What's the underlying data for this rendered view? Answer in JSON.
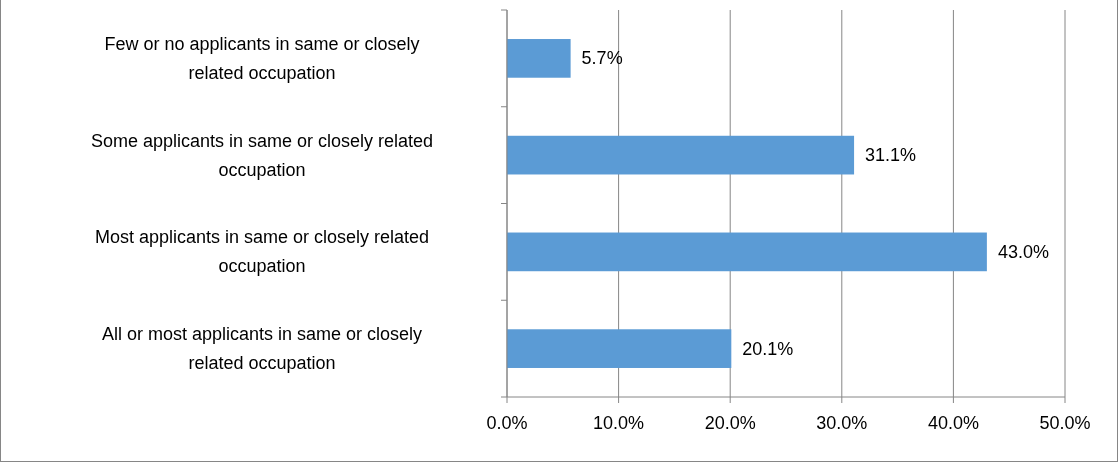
{
  "chart_data": {
    "type": "bar",
    "orientation": "horizontal",
    "categories": [
      "Few or no applicants in same or closely related occupation",
      "Some applicants in same or closely related occupation",
      "Most applicants in same or closely related occupation",
      "All or most applicants in same or closely related occupation"
    ],
    "values": [
      5.7,
      31.1,
      43.0,
      20.1
    ],
    "value_labels": [
      "5.7%",
      "31.1%",
      "43.0%",
      "20.1%"
    ],
    "color": "#5b9bd5",
    "xlim": [
      0,
      50
    ],
    "xticks": [
      {
        "value": 0,
        "label": "0.0%"
      },
      {
        "value": 10,
        "label": "10.0%"
      },
      {
        "value": 20,
        "label": "20.0%"
      },
      {
        "value": 30,
        "label": "30.0%"
      },
      {
        "value": 40,
        "label": "40.0%"
      },
      {
        "value": 50,
        "label": "50.0%"
      }
    ],
    "grid": "x"
  }
}
